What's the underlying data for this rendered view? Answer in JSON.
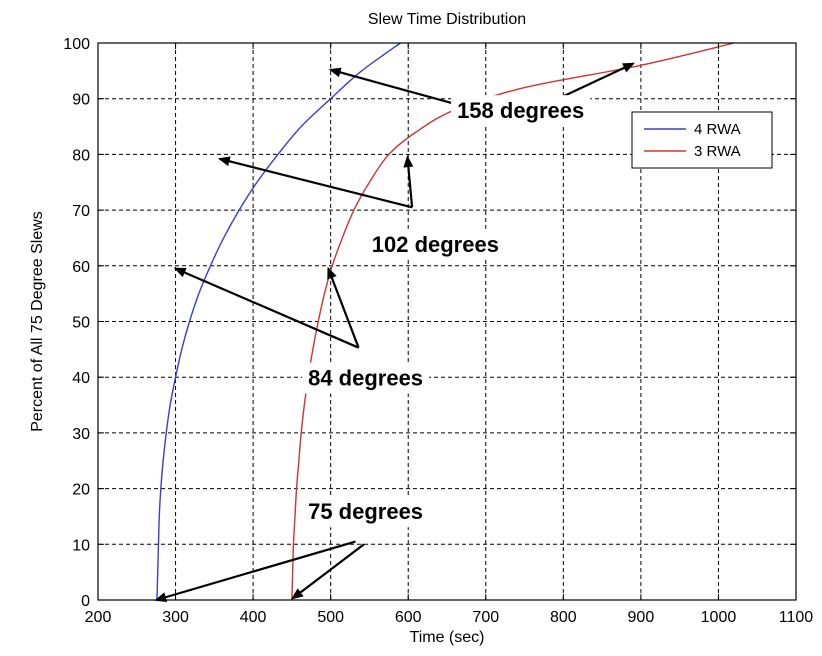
{
  "chart_data": {
    "type": "line",
    "title": "Slew Time Distribution",
    "xlabel": "Time (sec)",
    "ylabel": "Percent of All 75 Degree Slews",
    "xlim": [
      200,
      1100
    ],
    "ylim": [
      0,
      100
    ],
    "xticks": [
      200,
      300,
      400,
      500,
      600,
      700,
      800,
      900,
      1000,
      1100
    ],
    "yticks": [
      0,
      10,
      20,
      30,
      40,
      50,
      60,
      70,
      80,
      90,
      100
    ],
    "grid": true,
    "legend_position": "top-right",
    "series": [
      {
        "name": "4 RWA",
        "color": "#3c3cd2",
        "x": [
          276,
          277,
          278,
          279,
          281,
          284,
          288,
          293,
          300,
          308,
          318,
          330,
          345,
          362,
          382,
          405,
          432,
          462,
          500,
          540,
          590
        ],
        "y": [
          0,
          5,
          10,
          15,
          20,
          25,
          30,
          35,
          40,
          45,
          50,
          55,
          60,
          65,
          70,
          75,
          80,
          85,
          90,
          95,
          100
        ]
      },
      {
        "name": "3 RWA",
        "color": "#d23232",
        "x": [
          450,
          451,
          452,
          454,
          456,
          459,
          462,
          466,
          471,
          477,
          484,
          492,
          502,
          515,
          530,
          550,
          575,
          610,
          660,
          750,
          900,
          1020
        ],
        "y": [
          0,
          5,
          10,
          15,
          20,
          25,
          30,
          35,
          40,
          45,
          50,
          55,
          60,
          65,
          70,
          75,
          80,
          84,
          88,
          92,
          96,
          100
        ]
      }
    ],
    "annotations": [
      {
        "text": "158 degrees",
        "text_at": [
          745,
          86.5
        ],
        "arrows": [
          {
            "from": [
              735,
              86.2
            ],
            "to": [
              500,
              95.2
            ]
          },
          {
            "from": [
              735,
              86.2
            ],
            "to": [
              890,
              96.3
            ]
          }
        ]
      },
      {
        "text": "102 degrees",
        "text_at": [
          635,
          62.5
        ],
        "arrows": [
          {
            "from": [
              605,
              70.5
            ],
            "to": [
              357,
              79.2
            ]
          },
          {
            "from": [
              605,
              70.5
            ],
            "to": [
              599,
              79.5
            ]
          }
        ]
      },
      {
        "text": "84 degrees",
        "text_at": [
          545,
          38.5
        ],
        "arrows": [
          {
            "from": [
              536,
              45.3
            ],
            "to": [
              300,
              59.5
            ]
          },
          {
            "from": [
              536,
              45.3
            ],
            "to": [
              497,
              59.5
            ]
          }
        ]
      },
      {
        "text": "75 degrees",
        "text_at": [
          545,
          14.5
        ],
        "arrows": [
          {
            "from": [
              532,
              10.5
            ],
            "to": [
              275,
              0.0
            ]
          },
          {
            "from": [
              543,
              10.0
            ],
            "to": [
              451,
              0.3
            ]
          }
        ]
      }
    ]
  }
}
